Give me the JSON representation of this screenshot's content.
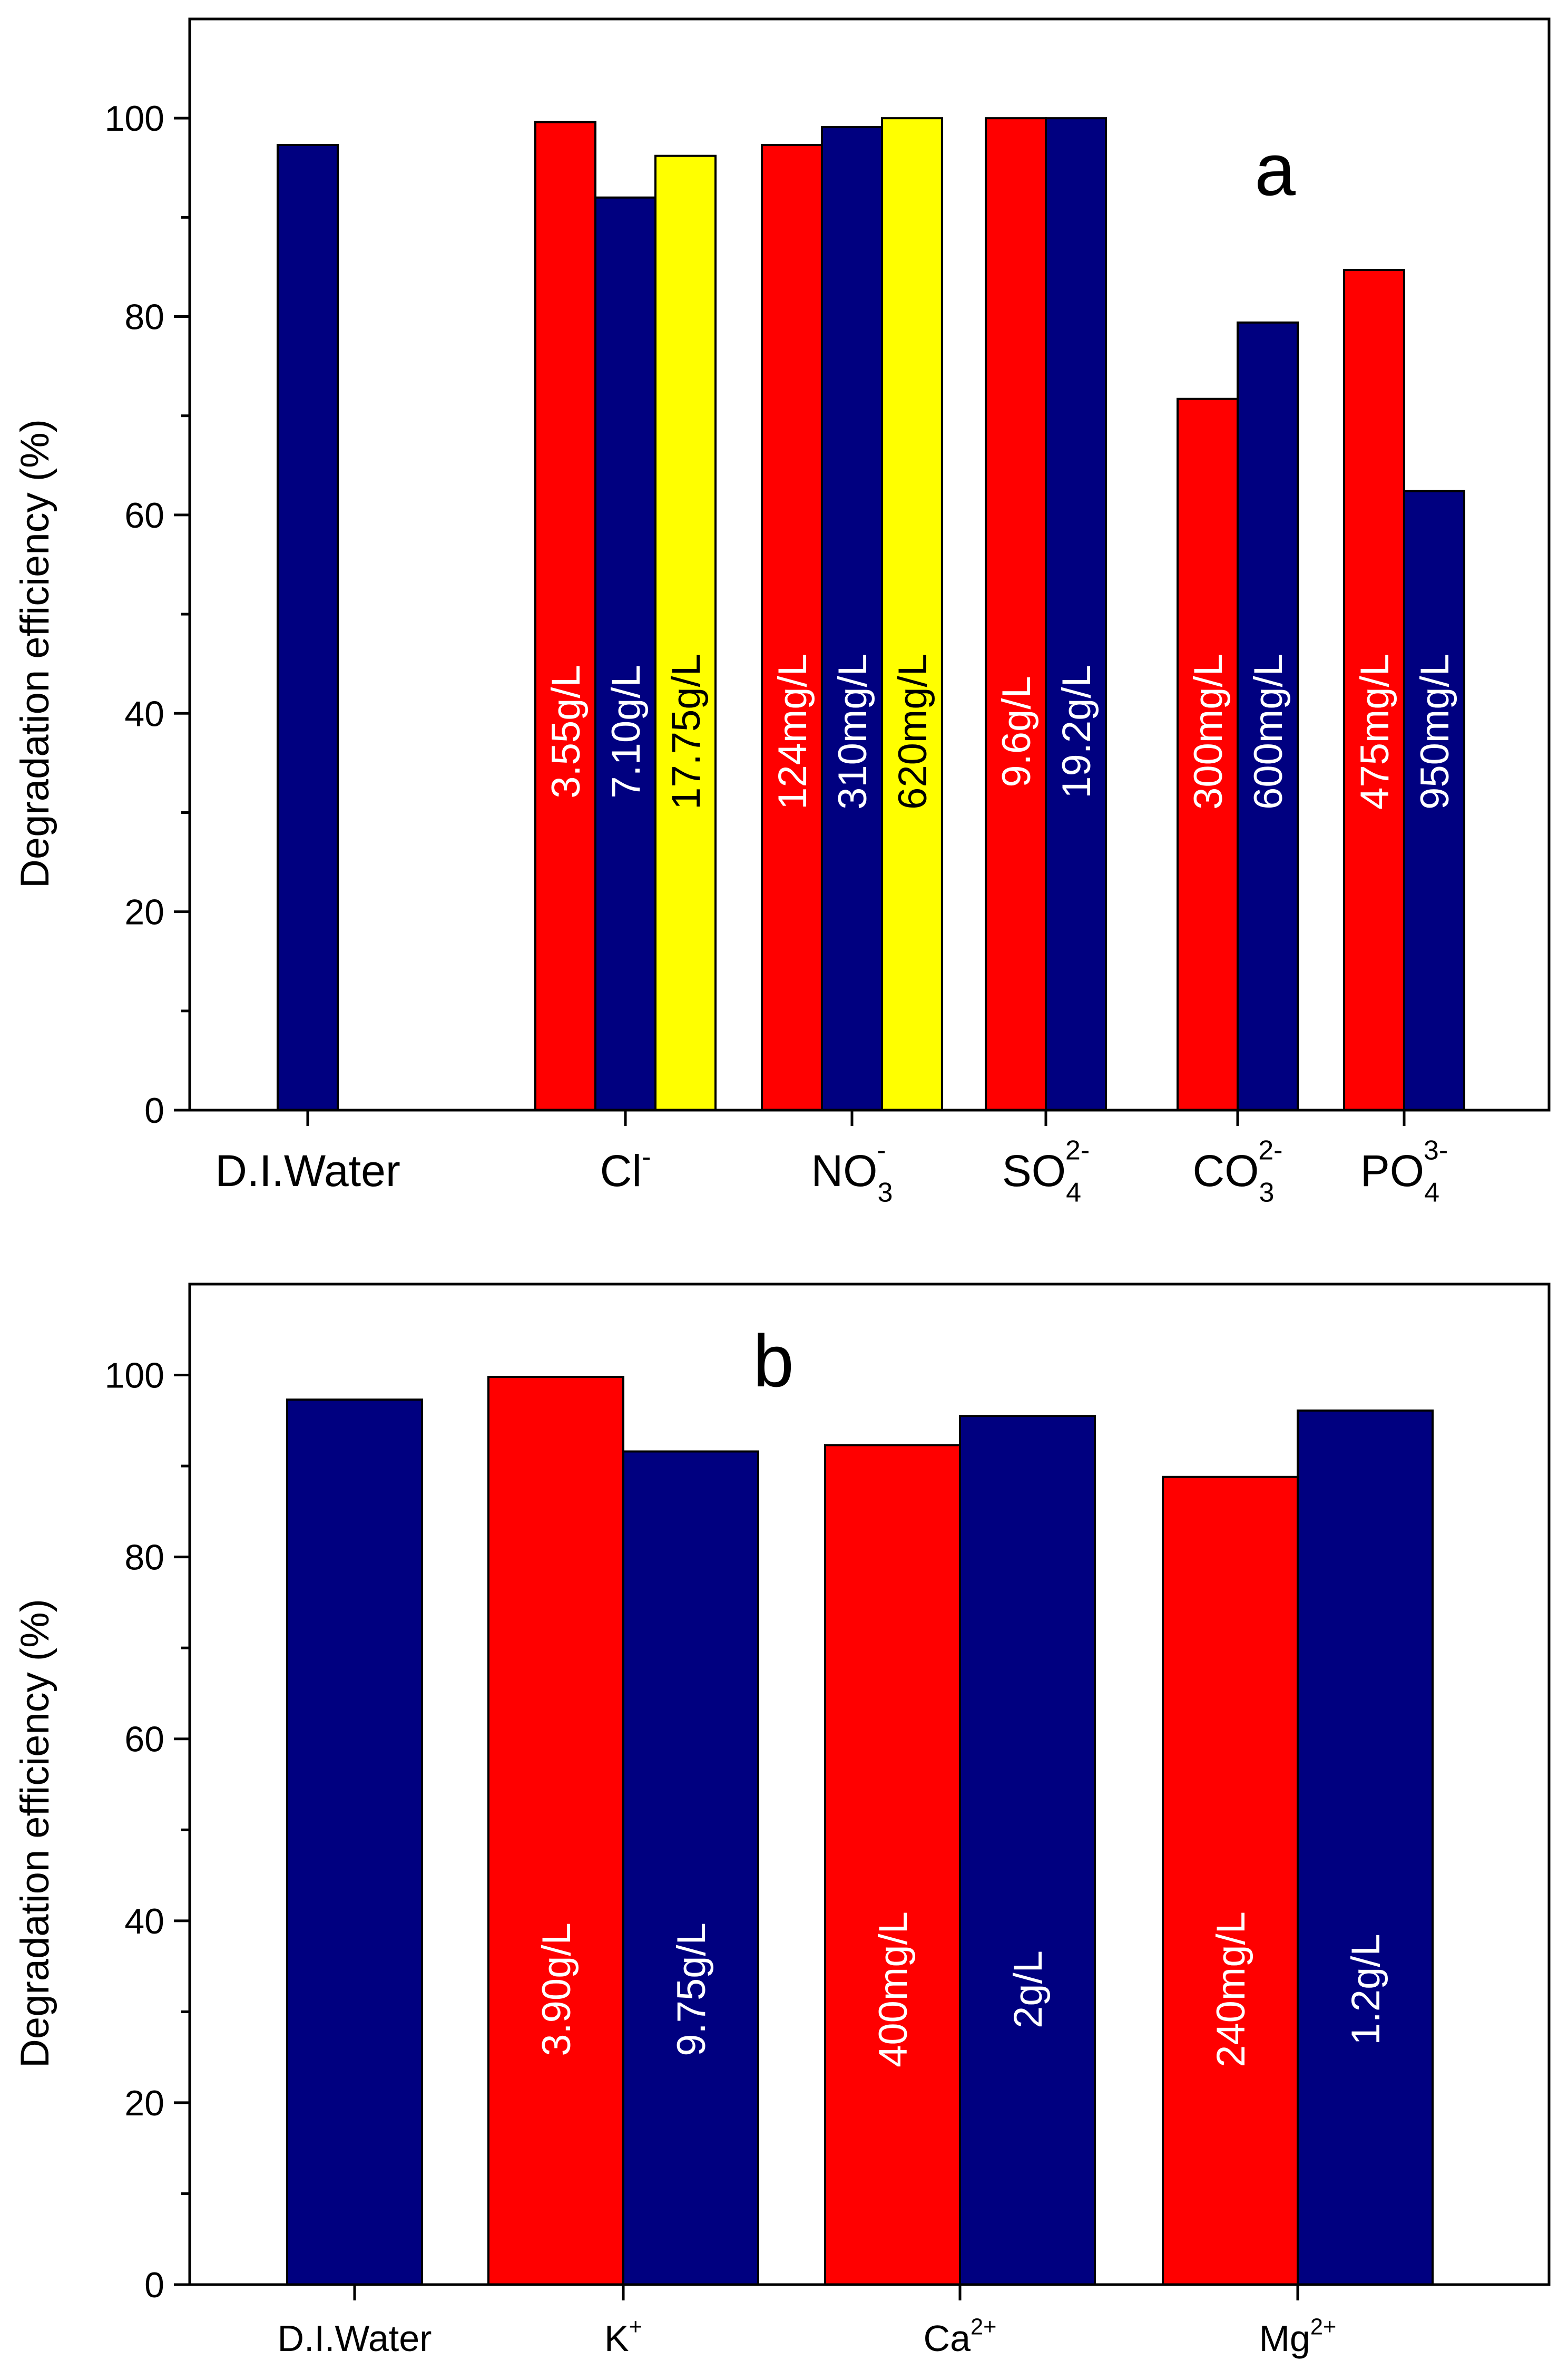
{
  "chart_data": [
    {
      "panel": "a",
      "type": "bar",
      "ylabel": "Degradation efficiency (%)",
      "ylim": [
        0,
        110
      ],
      "yticks": [
        0,
        20,
        40,
        60,
        80,
        100
      ],
      "colors": {
        "red": "#ff0000",
        "blue": "#000080",
        "yellow": "#ffff00"
      },
      "groups": [
        {
          "label": "D.I.Water",
          "bars": [
            {
              "value": 97.3,
              "color": "blue",
              "label": ""
            }
          ]
        },
        {
          "label": "Cl",
          "sup": "-",
          "bars": [
            {
              "value": 99.6,
              "color": "red",
              "label": "3.55g/L"
            },
            {
              "value": 92.0,
              "color": "blue",
              "label": "7.10g/L"
            },
            {
              "value": 96.2,
              "color": "yellow",
              "label": "17.75g/L"
            }
          ]
        },
        {
          "label": "NO",
          "sub": "3",
          "sup": "-",
          "bars": [
            {
              "value": 97.3,
              "color": "red",
              "label": "124mg/L"
            },
            {
              "value": 99.1,
              "color": "blue",
              "label": "310mg/L"
            },
            {
              "value": 100.0,
              "color": "yellow",
              "label": "620mg/L"
            }
          ]
        },
        {
          "label": "SO",
          "sub": "4",
          "sup": "2-",
          "bars": [
            {
              "value": 100.0,
              "color": "red",
              "label": "9.6g/L"
            },
            {
              "value": 100.0,
              "color": "blue",
              "label": "19.2g/L"
            }
          ]
        },
        {
          "label": "CO",
          "sub": "3",
          "sup": "2-",
          "bars": [
            {
              "value": 71.7,
              "color": "red",
              "label": "300mg/L"
            },
            {
              "value": 79.4,
              "color": "blue",
              "label": "600mg/L"
            }
          ]
        },
        {
          "label": "PO",
          "sub": "4",
          "sup": "3-",
          "bars": [
            {
              "value": 84.7,
              "color": "red",
              "label": "475mg/L"
            },
            {
              "value": 62.4,
              "color": "blue",
              "label": "950mg/L"
            }
          ]
        }
      ]
    },
    {
      "panel": "b",
      "type": "bar",
      "ylabel": "Degradation efficiency (%)",
      "ylim": [
        0,
        110
      ],
      "yticks": [
        0,
        20,
        40,
        60,
        80,
        100
      ],
      "colors": {
        "red": "#ff0000",
        "blue": "#000080"
      },
      "groups": [
        {
          "label": "D.I.Water",
          "bars": [
            {
              "value": 97.3,
              "color": "blue",
              "label": ""
            }
          ]
        },
        {
          "label": "K",
          "sup": "+",
          "bars": [
            {
              "value": 99.8,
              "color": "red",
              "label": "3.90g/L"
            },
            {
              "value": 91.6,
              "color": "blue",
              "label": "9.75g/L"
            }
          ]
        },
        {
          "label": "Ca",
          "sup": "2+",
          "bars": [
            {
              "value": 92.3,
              "color": "red",
              "label": "400mg/L"
            },
            {
              "value": 95.5,
              "color": "blue",
              "label": "2g/L"
            }
          ]
        },
        {
          "label": "Mg",
          "sup": "2+",
          "bars": [
            {
              "value": 88.8,
              "color": "red",
              "label": "240mg/L"
            },
            {
              "value": 96.1,
              "color": "blue",
              "label": "1.2g/L"
            }
          ]
        }
      ]
    }
  ]
}
